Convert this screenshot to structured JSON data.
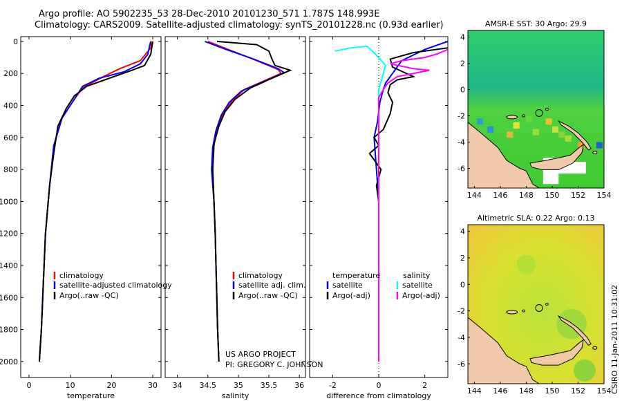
{
  "header": {
    "title_line1": "Argo profile: AO 5902235_53 28-Dec-2010 20101230_571 1.787S 148.993E",
    "title_line2": "Climatology: CARS2009. Satellite-adjusted climatology: synTS_20101228.nc (0.93d earlier)"
  },
  "credits": {
    "project": "US ARGO PROJECT",
    "pi": "PI: GREGORY C. JOHNSON"
  },
  "timestamp": "CSIRO 11-Jan-2011 10:31:02",
  "colors": {
    "climatology": "#ff0000",
    "satellite": "#0000ff",
    "argo": "#000000",
    "sat_salinity": "#00ffff",
    "argo_salinity": "#ff00ff",
    "land": "#f2c9a8"
  },
  "chart_data": [
    {
      "type": "line",
      "xlabel": "temperature",
      "ylabel": "",
      "xlim": [
        -2,
        32
      ],
      "ylim": [
        2100,
        0
      ],
      "xticks": [
        "0",
        "10",
        "20",
        "30"
      ],
      "yticks": [
        "0",
        "200",
        "400",
        "600",
        "800",
        "1000",
        "1200",
        "1400",
        "1600",
        "1800",
        "2000"
      ],
      "legend": [
        "climatology",
        "satellite-adjusted climatology",
        "Argo(..raw -QC)"
      ],
      "series": [
        {
          "name": "climatology",
          "color": "#ff0000",
          "points": [
            [
              29.8,
              0
            ],
            [
              29.5,
              40
            ],
            [
              27,
              120
            ],
            [
              22,
              170
            ],
            [
              18,
              220
            ],
            [
              13,
              290
            ],
            [
              11,
              360
            ],
            [
              8,
              480
            ],
            [
              6,
              650
            ],
            [
              5,
              900
            ],
            [
              4,
              1200
            ],
            [
              3.5,
              1500
            ],
            [
              3,
              1800
            ],
            [
              2.5,
              2000
            ]
          ]
        },
        {
          "name": "satellite-adjusted climatology",
          "color": "#0000ff",
          "points": [
            [
              29.5,
              0
            ],
            [
              29.2,
              30
            ],
            [
              28.8,
              80
            ],
            [
              27,
              140
            ],
            [
              23,
              190
            ],
            [
              17,
              230
            ],
            [
              13,
              280
            ],
            [
              11,
              360
            ],
            [
              8,
              480
            ],
            [
              6,
              650
            ],
            [
              5,
              900
            ],
            [
              4,
              1200
            ],
            [
              3.5,
              1500
            ],
            [
              3,
              1800
            ],
            [
              2.5,
              2000
            ]
          ]
        },
        {
          "name": "Argo(..raw -QC)",
          "color": "#000000",
          "points": [
            [
              30,
              0
            ],
            [
              29.8,
              30
            ],
            [
              29.5,
              80
            ],
            [
              28,
              150
            ],
            [
              25,
              180
            ],
            [
              20,
              225
            ],
            [
              14,
              280
            ],
            [
              11,
              340
            ],
            [
              9,
              420
            ],
            [
              7,
              530
            ],
            [
              6,
              700
            ],
            [
              5,
              900
            ],
            [
              4,
              1200
            ],
            [
              3.5,
              1500
            ],
            [
              3,
              1800
            ],
            [
              2.5,
              2000
            ]
          ]
        }
      ]
    },
    {
      "type": "line",
      "xlabel": "salinity",
      "ylabel": "",
      "xlim": [
        33.8,
        36.1
      ],
      "ylim": [
        2100,
        0
      ],
      "xticks": [
        "34",
        "34.5",
        "35",
        "35.5",
        "36"
      ],
      "legend": [
        "climatology",
        "satellite adj. clim.",
        "Argo(..raw -QC)"
      ],
      "series": [
        {
          "name": "climatology",
          "color": "#ff0000",
          "points": [
            [
              34.5,
              0
            ],
            [
              34.9,
              60
            ],
            [
              35.3,
              120
            ],
            [
              35.65,
              175
            ],
            [
              35.7,
              200
            ],
            [
              35.4,
              250
            ],
            [
              35.1,
              300
            ],
            [
              34.9,
              370
            ],
            [
              34.75,
              450
            ],
            [
              34.65,
              550
            ],
            [
              34.6,
              650
            ],
            [
              34.58,
              800
            ],
            [
              34.6,
              1000
            ],
            [
              34.62,
              1200
            ],
            [
              34.64,
              1500
            ],
            [
              34.66,
              1800
            ],
            [
              34.68,
              2000
            ]
          ]
        },
        {
          "name": "satellite adj. clim.",
          "color": "#0000ff",
          "points": [
            [
              34.45,
              0
            ],
            [
              34.8,
              50
            ],
            [
              35.25,
              110
            ],
            [
              35.65,
              170
            ],
            [
              35.75,
              195
            ],
            [
              35.45,
              245
            ],
            [
              35.05,
              310
            ],
            [
              34.85,
              380
            ],
            [
              34.72,
              460
            ],
            [
              34.63,
              560
            ],
            [
              34.58,
              660
            ],
            [
              34.56,
              800
            ],
            [
              34.6,
              1000
            ],
            [
              34.62,
              1200
            ],
            [
              34.64,
              1500
            ],
            [
              34.66,
              1800
            ],
            [
              34.68,
              2000
            ]
          ]
        },
        {
          "name": "Argo(..raw -QC)",
          "color": "#000000",
          "points": [
            [
              34.65,
              0
            ],
            [
              35.3,
              20
            ],
            [
              35.5,
              60
            ],
            [
              35.55,
              110
            ],
            [
              35.6,
              150
            ],
            [
              35.85,
              180
            ],
            [
              35.55,
              230
            ],
            [
              35.2,
              290
            ],
            [
              34.95,
              360
            ],
            [
              34.78,
              440
            ],
            [
              34.68,
              530
            ],
            [
              34.6,
              640
            ],
            [
              34.58,
              800
            ],
            [
              34.6,
              1000
            ],
            [
              34.62,
              1200
            ],
            [
              34.64,
              1500
            ],
            [
              34.66,
              1800
            ],
            [
              34.68,
              2000
            ]
          ]
        }
      ]
    },
    {
      "type": "line",
      "xlabel": "difference from climatology",
      "ylabel": "",
      "xlim": [
        -3,
        3
      ],
      "ylim": [
        2100,
        0
      ],
      "xticks": [
        "-2",
        "0",
        "2"
      ],
      "legend_left": [
        "temperature",
        "satellite",
        "Argo(-adj)"
      ],
      "legend_right": [
        "salinity",
        "satellite",
        "Argo(-adj)"
      ],
      "series": [
        {
          "name": "satellite",
          "color": "#0000ff",
          "points": [
            [
              3,
              0
            ],
            [
              2,
              50
            ],
            [
              1,
              120
            ],
            [
              0.6,
              200
            ],
            [
              0.3,
              260
            ],
            [
              0.2,
              300
            ],
            [
              0.05,
              380
            ],
            [
              -0.05,
              500
            ],
            [
              -0.2,
              600
            ],
            [
              -0.1,
              800
            ],
            [
              0,
              1000
            ],
            [
              0,
              1500
            ],
            [
              0,
              2000
            ]
          ]
        },
        {
          "name": "Argo(-adj)",
          "color": "#000000",
          "points": [
            [
              3,
              40
            ],
            [
              1.5,
              70
            ],
            [
              0.5,
              110
            ],
            [
              0.6,
              160
            ],
            [
              1.5,
              220
            ],
            [
              0.8,
              240
            ],
            [
              0.5,
              270
            ],
            [
              0.4,
              320
            ],
            [
              0.6,
              380
            ],
            [
              0.5,
              450
            ],
            [
              0.2,
              550
            ],
            [
              -0.2,
              600
            ],
            [
              0,
              650
            ],
            [
              -0.4,
              700
            ],
            [
              0.1,
              800
            ],
            [
              -0.1,
              900
            ],
            [
              0,
              1000
            ],
            [
              0,
              1500
            ],
            [
              0,
              2000
            ]
          ]
        },
        {
          "name": "satellite",
          "color": "#00ffff",
          "points": [
            [
              -1.9,
              60
            ],
            [
              -1.2,
              40
            ],
            [
              -0.5,
              30
            ],
            [
              0,
              100
            ],
            [
              0.3,
              150
            ],
            [
              0.2,
              200
            ],
            [
              0.1,
              250
            ],
            [
              0,
              300
            ],
            [
              0,
              1000
            ],
            [
              0,
              2000
            ]
          ]
        },
        {
          "name": "Argo(-adj)",
          "color": "#ff00ff",
          "points": [
            [
              3,
              50
            ],
            [
              2.5,
              80
            ],
            [
              2,
              100
            ],
            [
              1,
              120
            ],
            [
              0.5,
              140
            ],
            [
              1.5,
              170
            ],
            [
              2.2,
              180
            ],
            [
              0.8,
              220
            ],
            [
              0.4,
              260
            ],
            [
              0.2,
              300
            ],
            [
              0,
              350
            ],
            [
              0,
              1000
            ],
            [
              0,
              2000
            ]
          ]
        }
      ]
    },
    {
      "type": "heatmap",
      "title": "AMSR-E SST: 30 Argo: 29.9",
      "xlim": [
        143.5,
        154
      ],
      "ylim": [
        -7.5,
        4.5
      ],
      "xticks": [
        "144",
        "146",
        "148",
        "150",
        "152",
        "154"
      ],
      "yticks": [
        "-6",
        "-4",
        "-2",
        "0",
        "2",
        "4"
      ],
      "argo_position": [
        148.993,
        -1.787
      ]
    },
    {
      "type": "heatmap",
      "title": "Altimetric SLA: 0.22 Argo: 0.13",
      "xlim": [
        143.5,
        154
      ],
      "ylim": [
        -7.5,
        4.5
      ],
      "xticks": [
        "144",
        "146",
        "148",
        "150",
        "152",
        "154"
      ],
      "yticks": [
        "-6",
        "-4",
        "-2",
        "0",
        "2",
        "4"
      ],
      "argo_position": [
        148.993,
        -1.787
      ]
    }
  ]
}
